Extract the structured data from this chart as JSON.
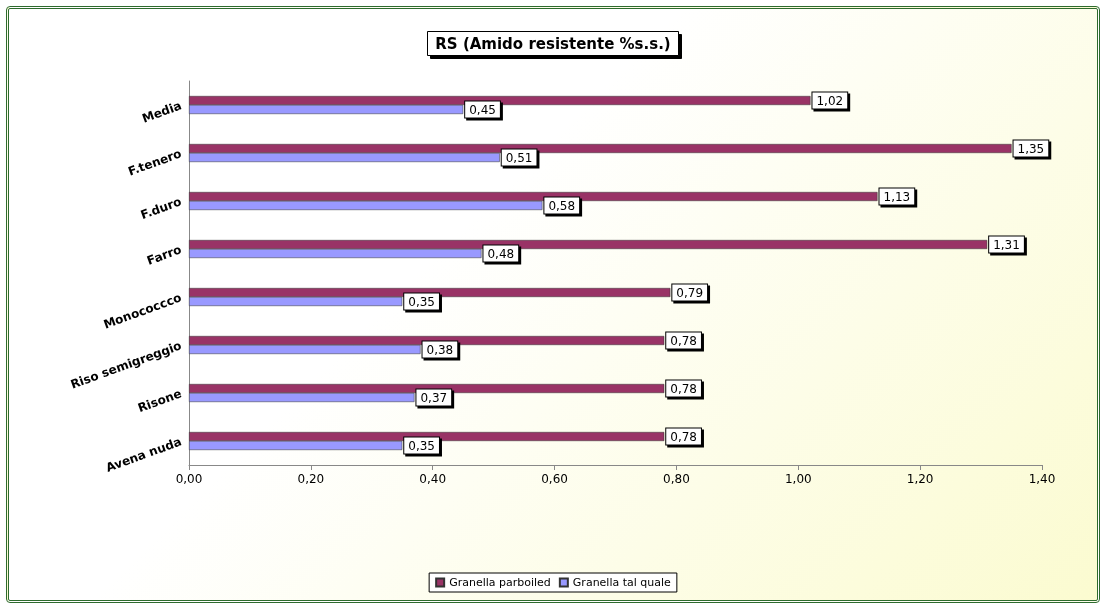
{
  "chart_data": {
    "type": "bar",
    "orientation": "horizontal",
    "title": "RS (Amido resistente %s.s.)",
    "categories": [
      "Media",
      "F.tenero",
      "F.duro",
      "Farro",
      "Monococcco",
      "Riso semigreggio",
      "Risone",
      "Avena nuda"
    ],
    "series": [
      {
        "name": "Granella parboiled",
        "color": "#993366",
        "values": [
          1.02,
          1.35,
          1.13,
          1.31,
          0.79,
          0.78,
          0.78,
          0.78
        ],
        "value_labels": [
          "1,02",
          "1,35",
          "1,13",
          "1,31",
          "0,79",
          "0,78",
          "0,78",
          "0,78"
        ]
      },
      {
        "name": "Granella tal quale",
        "color": "#9999ff",
        "values": [
          0.45,
          0.51,
          0.58,
          0.48,
          0.35,
          0.38,
          0.37,
          0.35
        ],
        "value_labels": [
          "0,45",
          "0,51",
          "0,58",
          "0,48",
          "0,35",
          "0,38",
          "0,37",
          "0,35"
        ]
      }
    ],
    "xlim": [
      0,
      1.4
    ],
    "xticks": [
      {
        "value": 0,
        "label": "0,00"
      },
      {
        "value": 0.2,
        "label": "0,20"
      },
      {
        "value": 0.4,
        "label": "0,40"
      },
      {
        "value": 0.6,
        "label": "0,60"
      },
      {
        "value": 0.8,
        "label": "0,80"
      },
      {
        "value": 1,
        "label": "1,00"
      },
      {
        "value": 1.2,
        "label": "1,20"
      },
      {
        "value": 1.4,
        "label": "1,40"
      }
    ],
    "grid": false,
    "legend": "bottom"
  }
}
